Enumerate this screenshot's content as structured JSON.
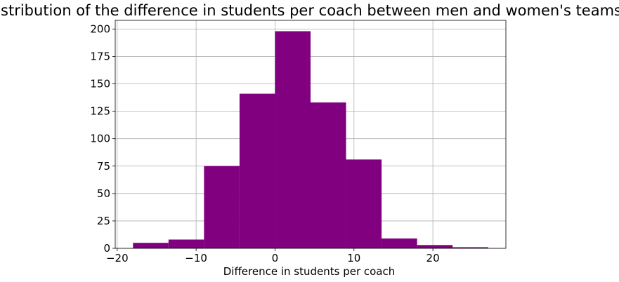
{
  "chart_data": {
    "type": "histogram",
    "title": "Distribution of the difference in students per coach between men and women's teams",
    "xlabel": "Difference in students per coach",
    "ylabel": "",
    "bin_edges": [
      -18.0,
      -13.5,
      -9.0,
      -4.5,
      0.0,
      4.5,
      9.0,
      13.5,
      18.0,
      22.5,
      27.0
    ],
    "counts": [
      5,
      8,
      75,
      141,
      198,
      133,
      81,
      9,
      3,
      1
    ],
    "xlim": [
      -20.25,
      29.25
    ],
    "ylim": [
      0,
      207.9
    ],
    "xticks": [
      -20,
      -10,
      0,
      10,
      20
    ],
    "xtick_labels": [
      "−20",
      "−10",
      "0",
      "10",
      "20"
    ],
    "yticks": [
      0,
      25,
      50,
      75,
      100,
      125,
      150,
      175,
      200
    ],
    "ytick_labels": [
      "0",
      "25",
      "50",
      "75",
      "100",
      "125",
      "150",
      "175",
      "200"
    ],
    "grid": true,
    "bar_color": "#800080",
    "grid_color": "#b0b0b0"
  }
}
